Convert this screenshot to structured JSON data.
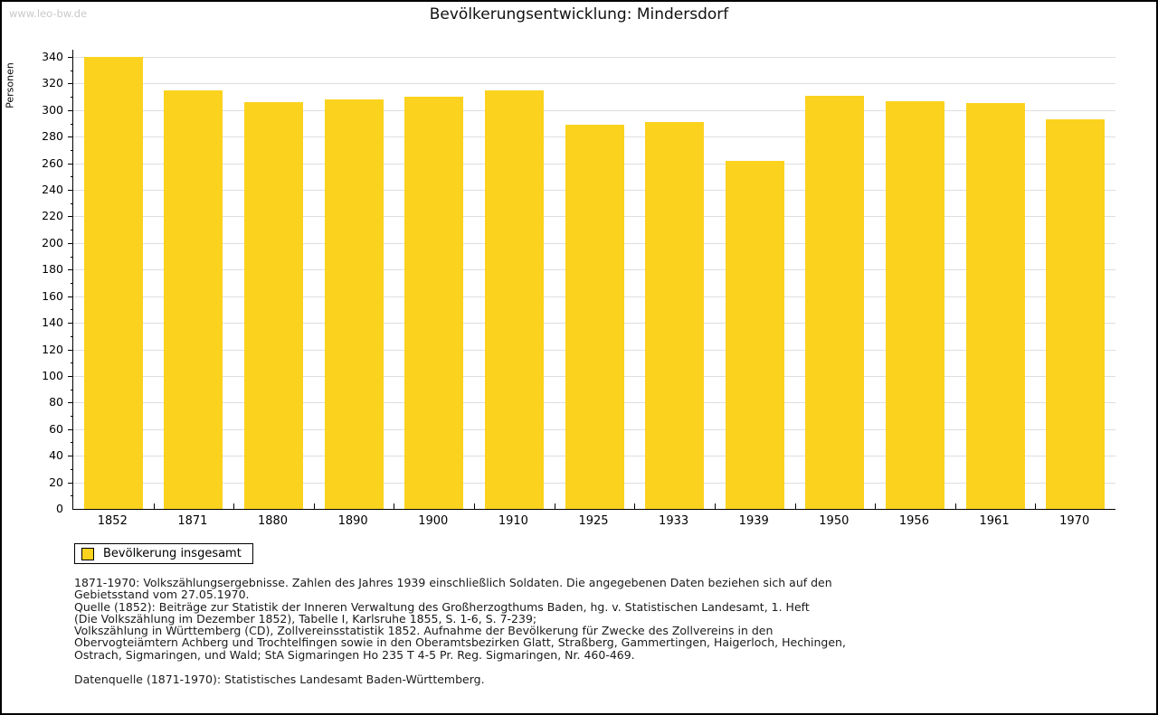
{
  "page": {
    "watermark": "www.leo-bw.de",
    "title": "Bevölkerungsentwicklung: Mindersdorf"
  },
  "chart_data": {
    "type": "bar",
    "title": "Bevölkerungsentwicklung: Mindersdorf",
    "xlabel": "",
    "ylabel": "Personen",
    "categories": [
      "1852",
      "1871",
      "1880",
      "1890",
      "1900",
      "1910",
      "1925",
      "1933",
      "1939",
      "1950",
      "1956",
      "1961",
      "1970"
    ],
    "values": [
      340,
      315,
      306,
      308,
      310,
      315,
      289,
      291,
      262,
      311,
      307,
      305,
      293
    ],
    "series_name": "Bevölkerung insgesamt",
    "ylim": [
      0,
      340
    ],
    "ytick_step": 20,
    "ytick_minor_step": 10,
    "grid": true,
    "legend_position": "bottom-left",
    "bar_color": "#fbd21e",
    "grid_color": "#dedede",
    "axis_color": "#000000"
  },
  "legend": {
    "label": "Bevölkerung insgesamt",
    "swatch_color": "#fbd21e"
  },
  "footnotes": {
    "lines": [
      "1871-1970: Volkszählungsergebnisse. Zahlen des Jahres 1939 einschließlich Soldaten. Die angegebenen Daten beziehen sich auf den",
      "Gebietsstand vom 27.05.1970.",
      "Quelle (1852): Beiträge zur Statistik der Inneren Verwaltung des Großherzogthums Baden, hg. v. Statistischen Landesamt, 1. Heft",
      "(Die Volkszählung im Dezember 1852), Tabelle I, Karlsruhe 1855, S. 1-6, S. 7-239;",
      "Volkszählung in Württemberg (CD), Zollvereinsstatistik 1852. Aufnahme der Bevölkerung für Zwecke des Zollvereins in den",
      "Obervogteiämtern Achberg und Trochtelfingen sowie in den Oberamtsbezirken Glatt, Straßberg, Gammertingen, Haigerloch, Hechingen,",
      "Ostrach, Sigmaringen, und Wald; StA Sigmaringen Ho 235 T 4-5 Pr. Reg. Sigmaringen, Nr. 460-469."
    ],
    "datasource": "Datenquelle (1871-1970): Statistisches Landesamt Baden-Württemberg."
  }
}
